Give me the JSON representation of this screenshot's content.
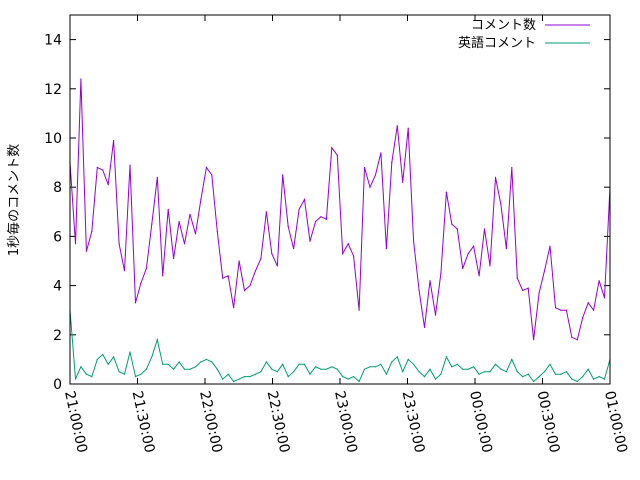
{
  "chart_data": {
    "type": "line",
    "title": "",
    "xlabel": "",
    "ylabel": "1秒毎のコメント数",
    "ylim": [
      0,
      15
    ],
    "yticks": [
      0,
      2,
      4,
      6,
      8,
      10,
      12,
      14
    ],
    "xlim": [
      "21:00:00",
      "01:00:00"
    ],
    "xticks": [
      "21:00:00",
      "21:30:00",
      "22:00:00",
      "22:30:00",
      "23:00:00",
      "23:30:00",
      "00:00:00",
      "00:30:00",
      "01:00:00"
    ],
    "grid": false,
    "legend_position": "top-right",
    "x_interval": "approx. 2 minutes per point",
    "series": [
      {
        "name": "コメント数",
        "color": "#9400d3",
        "values": [
          9.0,
          5.7,
          12.4,
          5.4,
          6.2,
          8.8,
          8.7,
          8.1,
          9.9,
          5.7,
          4.6,
          8.9,
          3.3,
          4.1,
          4.7,
          6.5,
          8.4,
          4.4,
          7.1,
          5.1,
          6.6,
          5.7,
          6.9,
          6.1,
          7.5,
          8.8,
          8.5,
          6.2,
          4.3,
          4.4,
          3.1,
          5.0,
          3.8,
          4.0,
          4.6,
          5.1,
          7.0,
          5.3,
          4.8,
          8.5,
          6.4,
          5.5,
          7.1,
          7.5,
          5.8,
          6.6,
          6.8,
          6.7,
          9.6,
          9.3,
          5.3,
          5.7,
          5.2,
          3.0,
          8.8,
          8.0,
          8.5,
          9.4,
          5.5,
          9.0,
          10.5,
          8.2,
          10.4,
          5.8,
          3.8,
          2.3,
          4.2,
          2.8,
          4.5,
          7.8,
          6.5,
          6.3,
          4.7,
          5.3,
          5.6,
          4.4,
          6.3,
          4.8,
          8.4,
          7.3,
          5.5,
          8.8,
          4.3,
          3.8,
          3.9,
          1.8,
          3.7,
          4.6,
          5.6,
          3.1,
          3.0,
          3.0,
          1.9,
          1.8,
          2.7,
          3.3,
          3.0,
          4.2,
          3.5,
          8.0
        ]
      },
      {
        "name": "英語コメント",
        "color": "#009e73",
        "values": [
          3.0,
          0.2,
          0.7,
          0.4,
          0.3,
          1.0,
          1.2,
          0.8,
          1.1,
          0.5,
          0.4,
          1.3,
          0.3,
          0.4,
          0.6,
          1.1,
          1.8,
          0.8,
          0.8,
          0.6,
          0.9,
          0.6,
          0.6,
          0.7,
          0.9,
          1.0,
          0.9,
          0.6,
          0.2,
          0.4,
          0.1,
          0.2,
          0.3,
          0.3,
          0.4,
          0.5,
          0.9,
          0.6,
          0.5,
          0.8,
          0.3,
          0.5,
          0.8,
          0.8,
          0.4,
          0.7,
          0.6,
          0.6,
          0.7,
          0.6,
          0.3,
          0.2,
          0.3,
          0.1,
          0.6,
          0.7,
          0.7,
          0.8,
          0.4,
          0.9,
          1.1,
          0.5,
          1.0,
          0.8,
          0.5,
          0.3,
          0.6,
          0.2,
          0.4,
          1.1,
          0.7,
          0.8,
          0.6,
          0.6,
          0.7,
          0.4,
          0.5,
          0.5,
          0.8,
          0.6,
          0.5,
          1.0,
          0.5,
          0.3,
          0.4,
          0.1,
          0.3,
          0.5,
          0.8,
          0.4,
          0.4,
          0.5,
          0.2,
          0.1,
          0.3,
          0.6,
          0.2,
          0.3,
          0.2,
          1.0
        ]
      }
    ]
  }
}
